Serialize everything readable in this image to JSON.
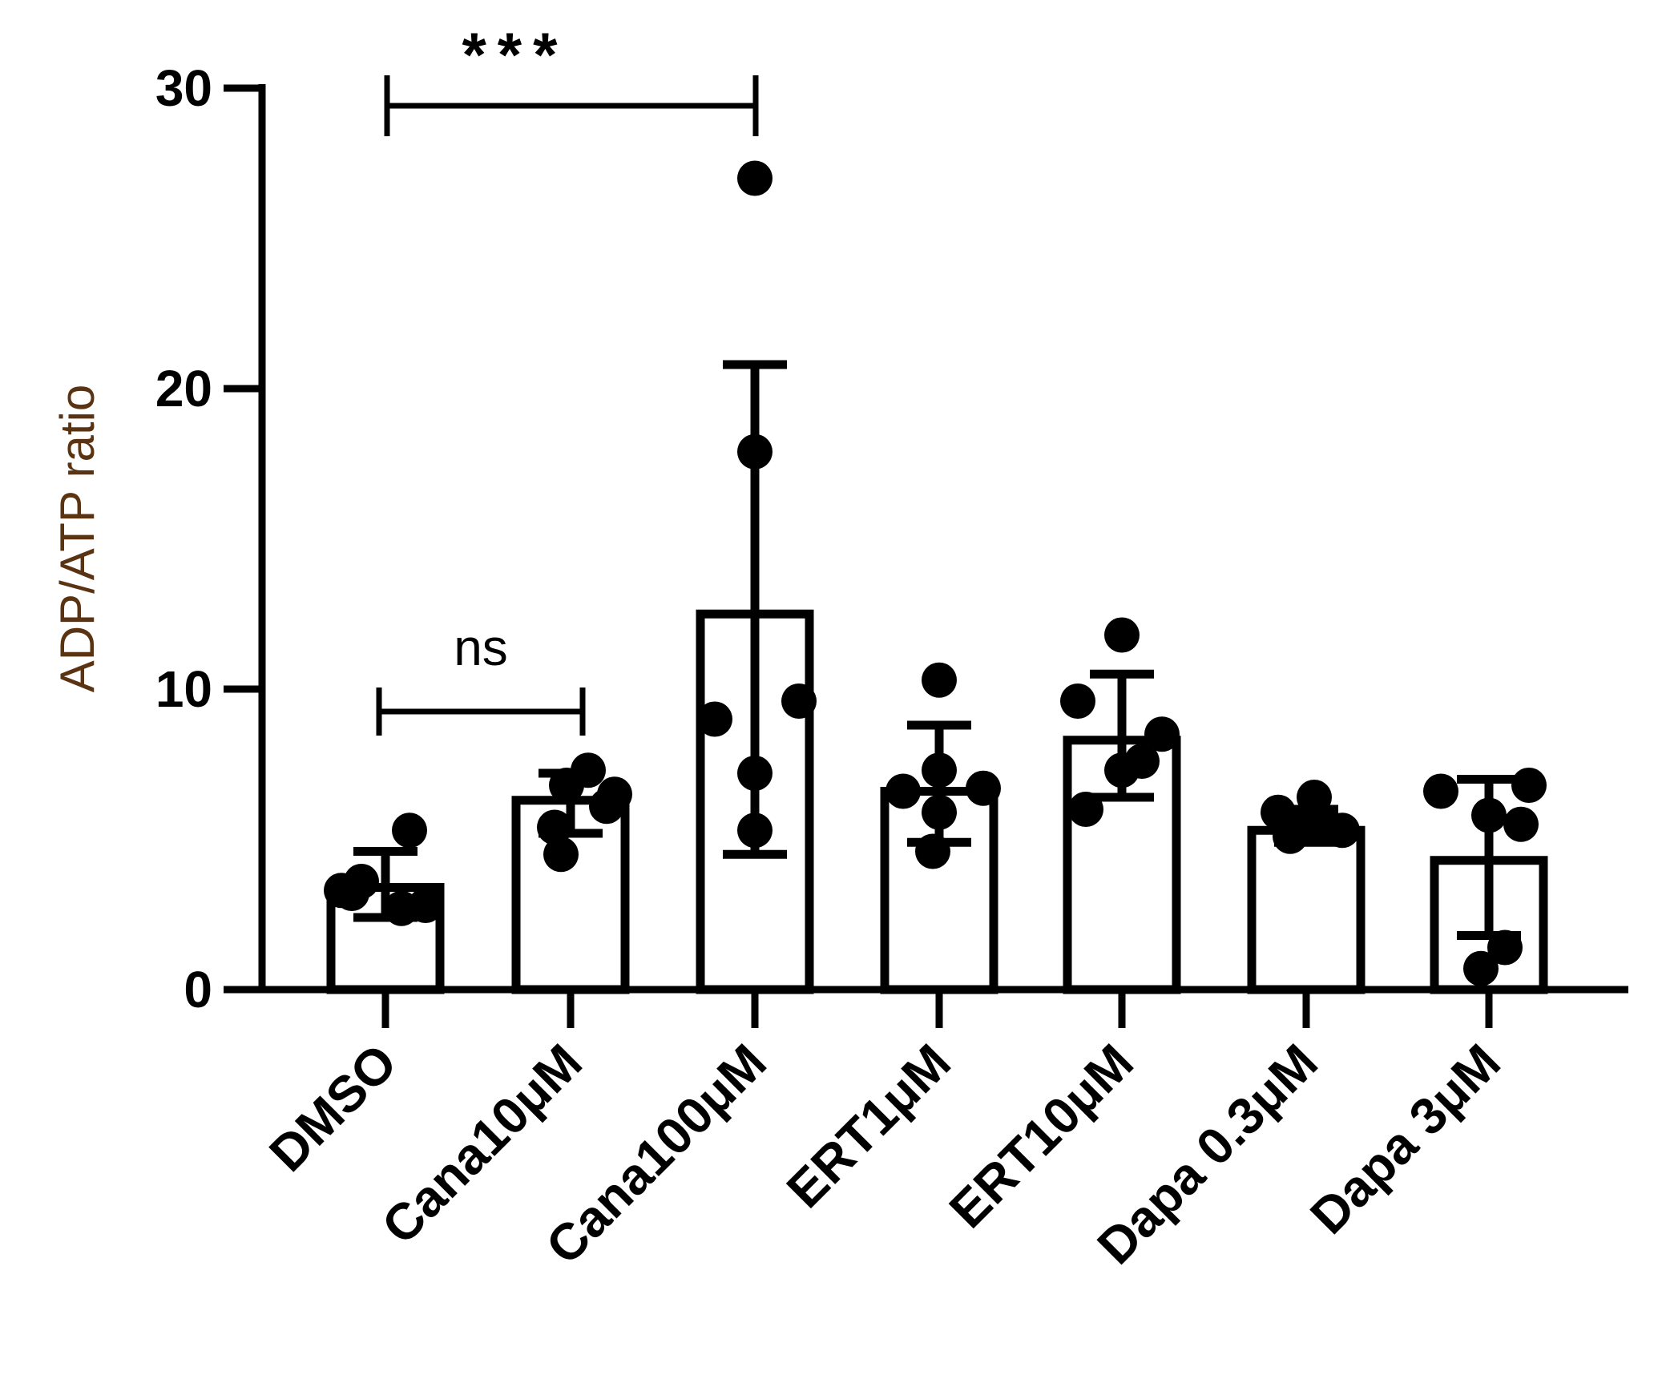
{
  "chart_data": {
    "type": "bar",
    "title": "",
    "xlabel": "",
    "ylabel": "ADP/ATP ratio",
    "ylim": [
      0,
      30
    ],
    "yticks": [
      0,
      10,
      20,
      30
    ],
    "grid": false,
    "categories": [
      "DMSO",
      "Cana10μM",
      "Cana100μM",
      "ERT1μM",
      "ERT10μM",
      "Dapa 0.3μM",
      "Dapa 3μM"
    ],
    "values": [
      3.4,
      6.3,
      12.5,
      6.6,
      8.3,
      5.3,
      4.3
    ],
    "error_upper": [
      4.6,
      7.2,
      20.8,
      8.8,
      10.5,
      6.0,
      7.0
    ],
    "error_lower": [
      2.4,
      5.2,
      4.5,
      4.9,
      6.4,
      4.9,
      1.8
    ],
    "points": [
      [
        3.3,
        5.3,
        3.6,
        2.8,
        3.2,
        2.7
      ],
      [
        6.8,
        7.3,
        6.1,
        5.4,
        4.5,
        6.5
      ],
      [
        27.0,
        17.9,
        9.0,
        9.6,
        7.2,
        5.3
      ],
      [
        10.3,
        7.3,
        6.7,
        6.6,
        5.9,
        4.6
      ],
      [
        11.8,
        9.6,
        8.5,
        7.3,
        6.0,
        7.6
      ],
      [
        6.4,
        5.9,
        5.3,
        5.1,
        5.5,
        5.6
      ],
      [
        6.6,
        6.8,
        5.5,
        1.4,
        0.7,
        5.8
      ]
    ],
    "significance": [
      {
        "from": "DMSO",
        "to": "Cana10μM",
        "label": "ns"
      },
      {
        "from": "DMSO",
        "to": "Cana100μM",
        "label": "***"
      }
    ],
    "colors": {
      "bar_fill": "#ffffff",
      "stroke": "#000000",
      "ylabel": "#5a3412"
    }
  }
}
